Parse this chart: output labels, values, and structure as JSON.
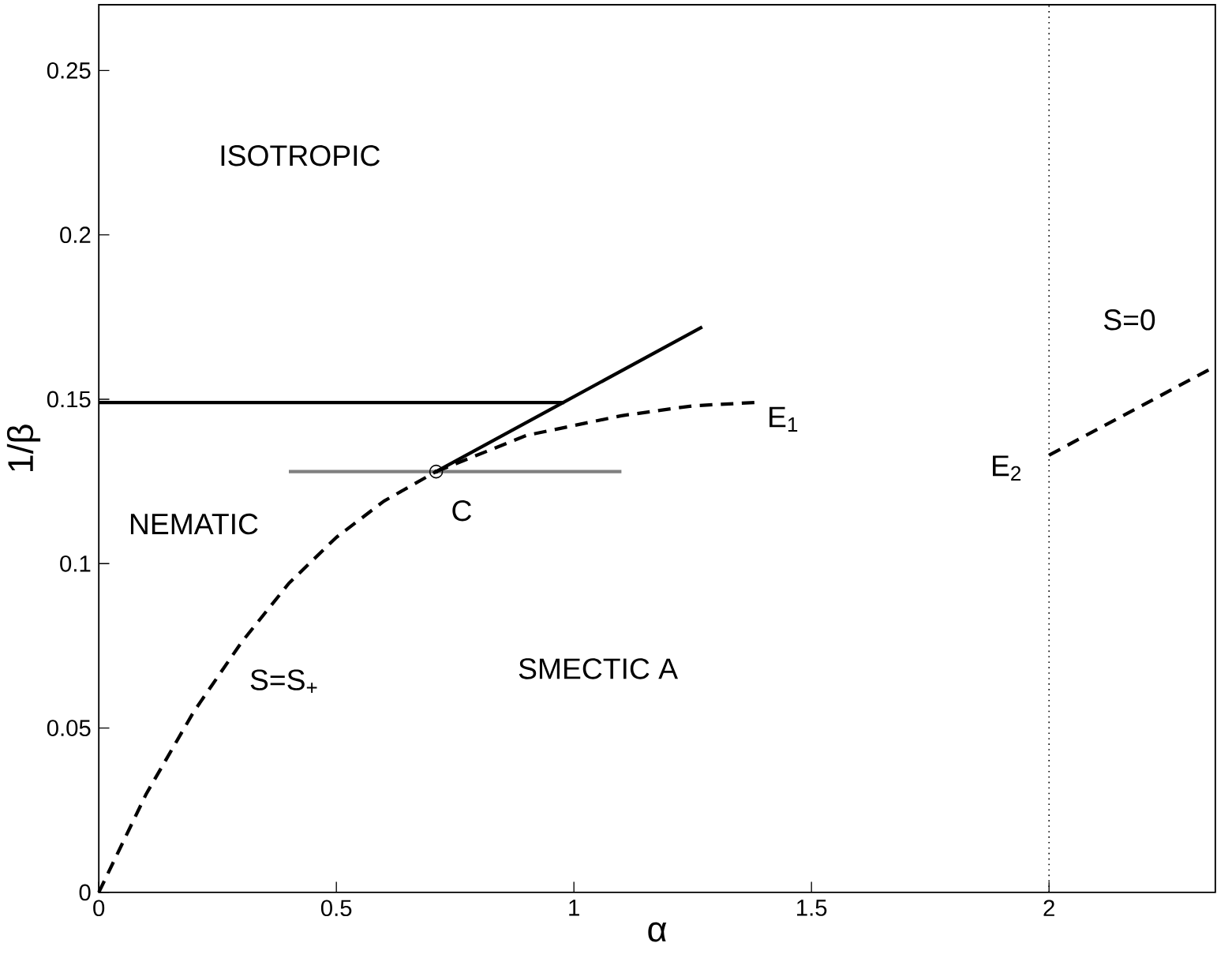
{
  "chart_data": {
    "type": "line",
    "xlabel": "α",
    "ylabel": "1/β",
    "xlim": [
      0,
      2.35
    ],
    "ylim": [
      0,
      0.27
    ],
    "xticks": [
      0,
      0.5,
      1,
      1.5,
      2
    ],
    "yticks": [
      0,
      0.05,
      0.1,
      0.15,
      0.2,
      0.25
    ],
    "series": [
      {
        "color": "#000000",
        "line_style": "solid",
        "x": [
          0,
          0.98
        ],
        "values": [
          0.149,
          0.149
        ]
      },
      {
        "color": "#808080",
        "line_style": "solid",
        "x": [
          0.4,
          1.1
        ],
        "values": [
          0.128,
          0.128
        ]
      },
      {
        "color": "#000000",
        "line_style": "solid",
        "x": [
          0.71,
          1.27
        ],
        "values": [
          0.128,
          0.172
        ]
      },
      {
        "color": "#000000",
        "line_style": "dashed",
        "x": [
          0.71,
          0.9,
          1.1,
          1.25,
          1.38
        ],
        "values": [
          0.128,
          0.139,
          0.145,
          0.148,
          0.149
        ]
      },
      {
        "color": "#000000",
        "line_style": "dashed",
        "x": [
          0,
          0.1,
          0.2,
          0.3,
          0.4,
          0.5,
          0.6,
          0.71
        ],
        "values": [
          0,
          0.03,
          0.055,
          0.076,
          0.094,
          0.108,
          0.119,
          0.128
        ]
      },
      {
        "color": "#000000",
        "line_style": "dashed",
        "x": [
          2,
          2.35
        ],
        "values": [
          0.133,
          0.16
        ]
      },
      {
        "type": "scatter",
        "color": "#000000",
        "marker": "circle",
        "x": [
          0.71
        ],
        "values": [
          0.128
        ]
      }
    ],
    "ref_lines": [
      {
        "axis": "x",
        "value": 2,
        "line_style": "dotted",
        "color": "#000000"
      }
    ],
    "annotations": [
      "ISOTROPIC",
      "NEMATIC",
      "C",
      "E$_{1}$",
      "E$_{2}$",
      "S=0",
      "SMECTIC A",
      "S=S$_{+}$"
    ]
  }
}
